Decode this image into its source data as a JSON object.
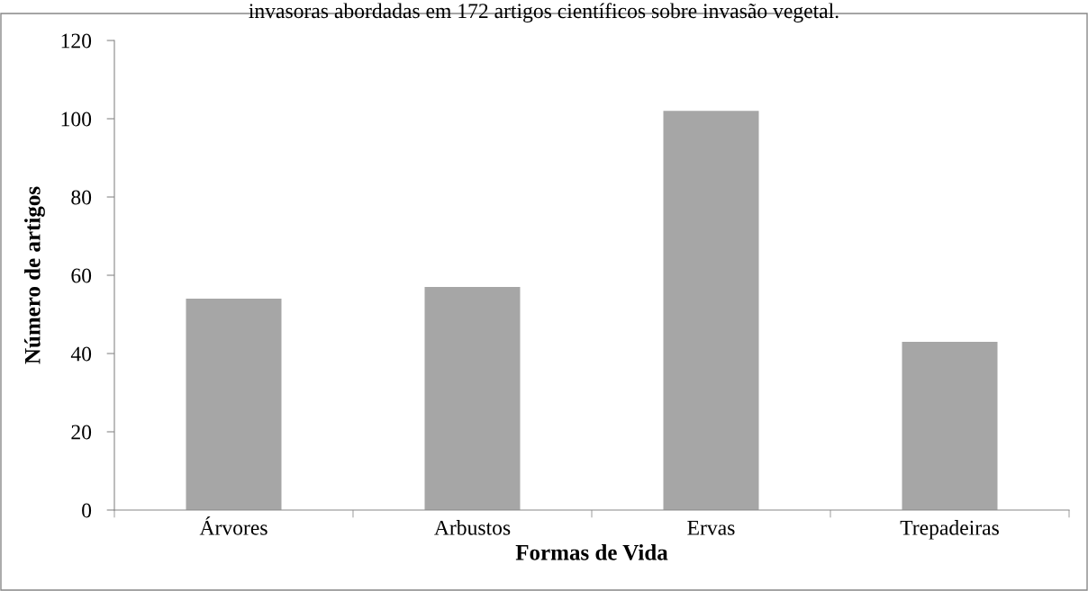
{
  "chart_data": {
    "type": "bar",
    "title": "invasoras abordadas em 172 artigos científicos sobre invasão vegetal.",
    "xlabel": "Formas de Vida",
    "ylabel": "Número de artigos",
    "categories": [
      "Árvores",
      "Arbustos",
      "Ervas",
      "Trepadeiras"
    ],
    "values": [
      54,
      57,
      102,
      43
    ],
    "color": "#a6a6a6",
    "ylim": [
      0,
      120
    ],
    "yticks": [
      0,
      20,
      40,
      60,
      80,
      100,
      120
    ],
    "grid": false,
    "legend": false
  }
}
